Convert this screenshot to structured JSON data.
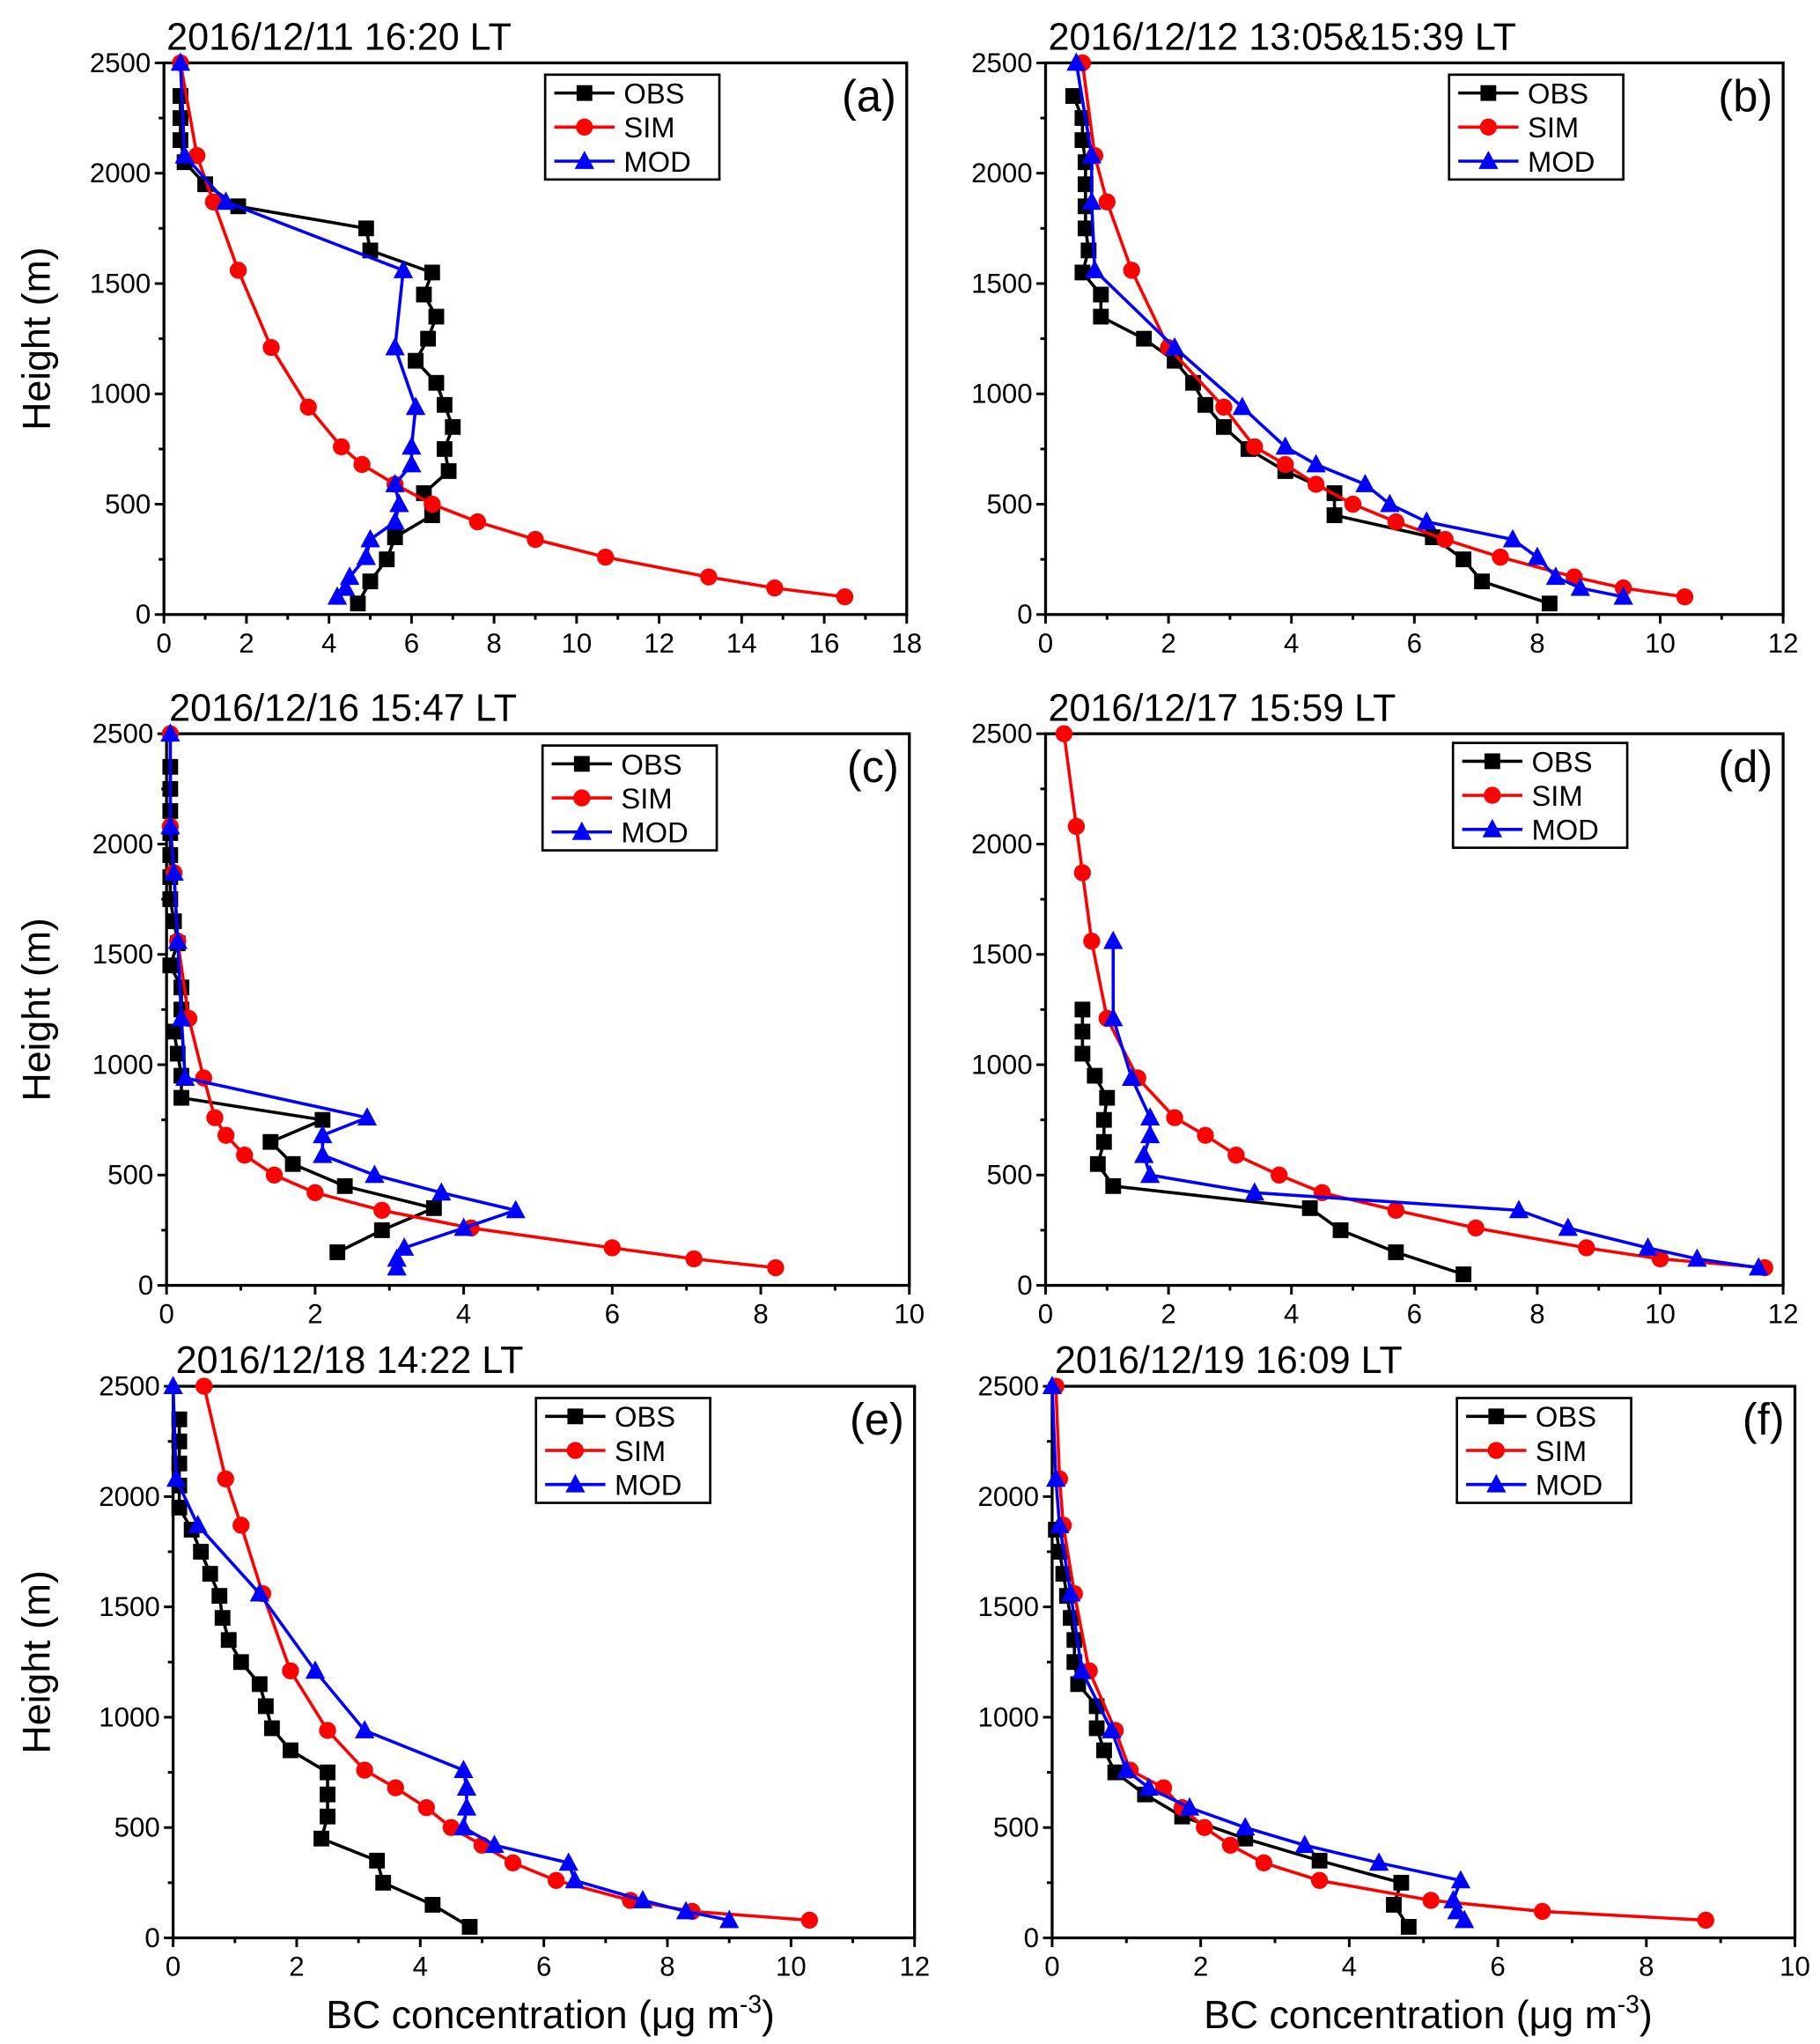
{
  "chart_data": [
    {
      "type": "line",
      "panel_label": "(a)",
      "title": "2016/12/11 16:20 LT",
      "xlim": [
        0,
        18
      ],
      "xstep": 2,
      "ylim": [
        0,
        2500
      ],
      "ystep": 500,
      "xlabel": "",
      "ylabel": "Height (m)",
      "series": [
        {
          "name": "OBS",
          "color": "#000000",
          "marker": "square",
          "h": [
            2350,
            2250,
            2150,
            2050,
            1950,
            1850,
            1750,
            1650,
            1550,
            1450,
            1350,
            1250,
            1150,
            1050,
            950,
            850,
            750,
            650,
            550,
            450,
            350,
            250,
            150,
            50
          ],
          "x": [
            0.4,
            0.4,
            0.4,
            0.5,
            1.0,
            1.8,
            4.9,
            5.0,
            6.5,
            6.3,
            6.6,
            6.4,
            6.1,
            6.6,
            6.8,
            7.0,
            6.8,
            6.9,
            6.3,
            6.5,
            5.6,
            5.4,
            5.0,
            4.7
          ]
        },
        {
          "name": "SIM",
          "color": "#ff0000",
          "marker": "circle",
          "h": [
            2500,
            2080,
            1870,
            1560,
            1210,
            940,
            760,
            680,
            590,
            500,
            420,
            340,
            260,
            170,
            120,
            80
          ],
          "x": [
            0.4,
            0.8,
            1.2,
            1.8,
            2.6,
            3.5,
            4.3,
            4.8,
            5.6,
            6.5,
            7.6,
            9.0,
            10.7,
            13.2,
            14.8,
            16.5
          ]
        },
        {
          "name": "MOD",
          "color": "#0000ff",
          "marker": "triangle",
          "h": [
            2500,
            2080,
            1870,
            1560,
            1210,
            940,
            760,
            680,
            590,
            500,
            420,
            340,
            260,
            170,
            120,
            80
          ],
          "x": [
            0.4,
            0.5,
            1.5,
            5.8,
            5.6,
            6.1,
            6.0,
            6.0,
            5.6,
            5.7,
            5.6,
            5.0,
            4.9,
            4.5,
            4.4,
            4.2
          ]
        }
      ]
    },
    {
      "type": "line",
      "panel_label": "(b)",
      "title": "2016/12/12 13:05&15:39 LT",
      "xlim": [
        0,
        12
      ],
      "xstep": 2,
      "ylim": [
        0,
        2500
      ],
      "ystep": 500,
      "xlabel": "",
      "ylabel": "",
      "series": [
        {
          "name": "OBS",
          "color": "#000000",
          "marker": "square",
          "h": [
            2350,
            2250,
            2150,
            2050,
            1950,
            1850,
            1750,
            1650,
            1550,
            1450,
            1350,
            1250,
            1150,
            1050,
            950,
            850,
            750,
            650,
            550,
            450,
            350,
            250,
            150,
            50
          ],
          "x": [
            0.45,
            0.6,
            0.6,
            0.65,
            0.65,
            0.65,
            0.65,
            0.7,
            0.6,
            0.9,
            0.9,
            1.6,
            2.1,
            2.4,
            2.6,
            2.9,
            3.3,
            3.9,
            4.7,
            4.7,
            6.3,
            6.8,
            7.1,
            8.2
          ]
        },
        {
          "name": "SIM",
          "color": "#ff0000",
          "marker": "circle",
          "h": [
            2500,
            2080,
            1870,
            1560,
            1210,
            940,
            760,
            680,
            590,
            500,
            420,
            340,
            260,
            170,
            120,
            80
          ],
          "x": [
            0.6,
            0.8,
            1.0,
            1.4,
            2.0,
            2.9,
            3.4,
            3.9,
            4.4,
            5.0,
            5.7,
            6.5,
            7.4,
            8.6,
            9.4,
            10.4
          ]
        },
        {
          "name": "MOD",
          "color": "#0000ff",
          "marker": "triangle",
          "h": [
            2500,
            2080,
            1870,
            1560,
            1210,
            940,
            760,
            680,
            590,
            500,
            420,
            340,
            260,
            170,
            120,
            80
          ],
          "x": [
            0.5,
            0.75,
            0.75,
            0.8,
            2.1,
            3.2,
            3.9,
            4.4,
            5.2,
            5.6,
            6.2,
            7.6,
            8.0,
            8.3,
            8.7,
            9.4
          ]
        }
      ]
    },
    {
      "type": "line",
      "panel_label": "(c)",
      "title": "2016/12/16 15:47 LT",
      "xlim": [
        0,
        10
      ],
      "xstep": 2,
      "ylim": [
        0,
        2500
      ],
      "ystep": 500,
      "xlabel": "",
      "ylabel": "Height (m)",
      "series": [
        {
          "name": "OBS",
          "color": "#000000",
          "marker": "square",
          "h": [
            2350,
            2250,
            2150,
            2050,
            1950,
            1850,
            1750,
            1650,
            1550,
            1450,
            1350,
            1250,
            1150,
            1050,
            950,
            850,
            750,
            650,
            550,
            450,
            350,
            250,
            150
          ],
          "x": [
            0.05,
            0.05,
            0.05,
            0.05,
            0.05,
            0.05,
            0.05,
            0.1,
            0.15,
            0.05,
            0.2,
            0.2,
            0.1,
            0.15,
            0.2,
            0.2,
            2.1,
            1.4,
            1.7,
            2.4,
            3.6,
            2.9,
            2.3
          ]
        },
        {
          "name": "SIM",
          "color": "#ff0000",
          "marker": "circle",
          "h": [
            2500,
            2080,
            1870,
            1560,
            1210,
            940,
            760,
            680,
            590,
            500,
            420,
            340,
            260,
            170,
            120,
            80
          ],
          "x": [
            0.05,
            0.05,
            0.1,
            0.15,
            0.3,
            0.5,
            0.65,
            0.8,
            1.05,
            1.45,
            2.0,
            2.9,
            4.1,
            6.0,
            7.1,
            8.2
          ]
        },
        {
          "name": "MOD",
          "color": "#0000ff",
          "marker": "triangle",
          "h": [
            2500,
            2080,
            1870,
            1560,
            1210,
            940,
            760,
            680,
            590,
            500,
            420,
            340,
            260,
            170,
            120,
            80
          ],
          "x": [
            0.05,
            0.05,
            0.1,
            0.15,
            0.2,
            0.25,
            2.7,
            2.1,
            2.1,
            2.8,
            3.7,
            4.7,
            4.0,
            3.2,
            3.1,
            3.1
          ]
        }
      ]
    },
    {
      "type": "line",
      "panel_label": "(d)",
      "title": "2016/12/17 15:59 LT",
      "xlim": [
        0,
        12
      ],
      "xstep": 2,
      "ylim": [
        0,
        2500
      ],
      "ystep": 500,
      "xlabel": "",
      "ylabel": "",
      "series": [
        {
          "name": "OBS",
          "color": "#000000",
          "marker": "square",
          "h": [
            1250,
            1150,
            1050,
            950,
            850,
            750,
            650,
            550,
            450,
            350,
            250,
            150,
            50
          ],
          "x": [
            0.6,
            0.6,
            0.6,
            0.8,
            1.0,
            0.95,
            0.95,
            0.85,
            1.1,
            4.3,
            4.8,
            5.7,
            6.8
          ]
        },
        {
          "name": "SIM",
          "color": "#ff0000",
          "marker": "circle",
          "h": [
            2500,
            2080,
            1870,
            1560,
            1210,
            940,
            760,
            680,
            590,
            500,
            420,
            340,
            260,
            170,
            120,
            80
          ],
          "x": [
            0.3,
            0.5,
            0.6,
            0.75,
            1.0,
            1.5,
            2.1,
            2.6,
            3.1,
            3.8,
            4.5,
            5.7,
            7.0,
            8.8,
            10.0,
            11.7
          ]
        },
        {
          "name": "MOD",
          "color": "#0000ff",
          "marker": "triangle",
          "h": [
            1560,
            1210,
            940,
            760,
            680,
            590,
            500,
            420,
            340,
            260,
            170,
            120,
            80
          ],
          "x": [
            1.1,
            1.1,
            1.4,
            1.7,
            1.7,
            1.6,
            1.7,
            3.4,
            7.7,
            8.5,
            9.8,
            10.6,
            11.6
          ]
        }
      ]
    },
    {
      "type": "line",
      "panel_label": "(e)",
      "title": "2016/12/18 14:22 LT",
      "xlim": [
        0,
        12
      ],
      "xstep": 2,
      "ylim": [
        0,
        2500
      ],
      "ystep": 500,
      "xlabel": "",
      "ylabel": "Height (m)",
      "series": [
        {
          "name": "OBS",
          "color": "#000000",
          "marker": "square",
          "h": [
            2350,
            2250,
            2150,
            2050,
            1950,
            1850,
            1750,
            1650,
            1550,
            1450,
            1350,
            1250,
            1150,
            1050,
            950,
            850,
            750,
            650,
            550,
            450,
            350,
            250,
            150,
            50
          ],
          "x": [
            0.1,
            0.1,
            0.1,
            0.1,
            0.1,
            0.3,
            0.45,
            0.6,
            0.75,
            0.8,
            0.9,
            1.1,
            1.4,
            1.5,
            1.6,
            1.9,
            2.5,
            2.5,
            2.5,
            2.4,
            3.3,
            3.4,
            4.2,
            4.8
          ]
        },
        {
          "name": "SIM",
          "color": "#ff0000",
          "marker": "circle",
          "h": [
            2500,
            2080,
            1870,
            1560,
            1210,
            940,
            760,
            680,
            590,
            500,
            420,
            340,
            260,
            170,
            120,
            80
          ],
          "x": [
            0.5,
            0.85,
            1.1,
            1.45,
            1.9,
            2.5,
            3.1,
            3.6,
            4.1,
            4.5,
            5.0,
            5.5,
            6.2,
            7.4,
            8.4,
            10.3
          ]
        },
        {
          "name": "MOD",
          "color": "#0000ff",
          "marker": "triangle",
          "h": [
            2500,
            2080,
            1870,
            1560,
            1210,
            940,
            760,
            680,
            590,
            500,
            420,
            340,
            260,
            170,
            120,
            80
          ],
          "x": [
            0.0,
            0.05,
            0.4,
            1.4,
            2.3,
            3.1,
            4.7,
            4.75,
            4.75,
            4.7,
            5.2,
            6.4,
            6.5,
            7.6,
            8.3,
            9.0
          ]
        }
      ]
    },
    {
      "type": "line",
      "panel_label": "(f)",
      "title": "2016/12/19 16:09 LT",
      "xlim": [
        0,
        10
      ],
      "xstep": 2,
      "ylim": [
        0,
        2500
      ],
      "ystep": 500,
      "xlabel": "",
      "ylabel": "",
      "series": [
        {
          "name": "OBS",
          "color": "#000000",
          "marker": "square",
          "h": [
            1850,
            1750,
            1650,
            1550,
            1450,
            1350,
            1250,
            1150,
            1050,
            950,
            850,
            750,
            650,
            550,
            450,
            350,
            250,
            150,
            50
          ],
          "x": [
            0.05,
            0.1,
            0.15,
            0.2,
            0.25,
            0.3,
            0.3,
            0.35,
            0.6,
            0.6,
            0.7,
            0.85,
            1.25,
            1.75,
            2.6,
            3.6,
            4.7,
            4.6,
            4.8
          ]
        },
        {
          "name": "SIM",
          "color": "#ff0000",
          "marker": "circle",
          "h": [
            2500,
            2080,
            1870,
            1560,
            1210,
            940,
            760,
            680,
            590,
            500,
            420,
            340,
            260,
            170,
            120,
            80
          ],
          "x": [
            0.05,
            0.1,
            0.15,
            0.3,
            0.5,
            0.85,
            1.05,
            1.5,
            1.75,
            2.05,
            2.4,
            2.85,
            3.6,
            5.1,
            6.6,
            8.8
          ]
        },
        {
          "name": "MOD",
          "color": "#0000ff",
          "marker": "triangle",
          "h": [
            2500,
            2080,
            1870,
            1560,
            1210,
            940,
            760,
            680,
            590,
            500,
            420,
            340,
            260,
            170,
            120,
            80
          ],
          "x": [
            0.0,
            0.05,
            0.1,
            0.25,
            0.4,
            0.8,
            1.0,
            1.3,
            1.85,
            2.6,
            3.4,
            4.4,
            5.5,
            5.4,
            5.45,
            5.55
          ]
        }
      ]
    }
  ],
  "shared_xlabel": {
    "text": "BC concentration (μg m",
    "sup": "-3",
    "close": ")"
  }
}
